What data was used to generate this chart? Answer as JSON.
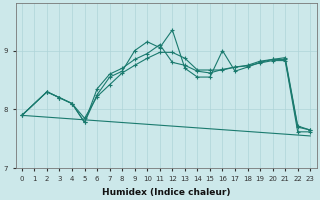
{
  "xlabel": "Humidex (Indice chaleur)",
  "bg_color": "#cce8ea",
  "line_color": "#1a7a6e",
  "grid_color": "#afd4d8",
  "xlim": [
    -0.5,
    23.5
  ],
  "ylim": [
    7.0,
    9.8
  ],
  "yticks": [
    7,
    8,
    9
  ],
  "xticks": [
    0,
    1,
    2,
    3,
    4,
    5,
    6,
    7,
    8,
    9,
    10,
    11,
    12,
    13,
    14,
    15,
    16,
    17,
    18,
    19,
    20,
    21,
    22,
    23
  ],
  "series": [
    {
      "x": [
        0,
        2,
        3,
        4,
        5,
        6,
        7,
        8,
        9,
        10,
        11,
        12,
        13,
        14,
        15,
        16,
        17,
        18,
        19,
        20,
        21,
        22,
        23
      ],
      "y": [
        7.9,
        8.3,
        8.2,
        8.1,
        7.78,
        8.25,
        8.55,
        8.65,
        9.0,
        9.15,
        9.05,
        9.35,
        8.7,
        8.55,
        8.55,
        9.0,
        8.65,
        8.72,
        8.8,
        8.85,
        8.85,
        7.7,
        7.65
      ]
    },
    {
      "x": [
        0,
        2,
        3,
        4,
        5,
        6,
        7,
        8,
        9,
        10,
        11,
        12,
        13,
        14,
        15,
        16,
        17,
        18,
        19,
        20,
        21,
        22,
        23
      ],
      "y": [
        7.9,
        8.3,
        8.2,
        8.1,
        7.78,
        8.35,
        8.6,
        8.7,
        8.85,
        8.95,
        9.1,
        8.8,
        8.75,
        8.65,
        8.62,
        8.68,
        8.72,
        8.75,
        8.82,
        8.85,
        8.88,
        7.72,
        7.65
      ]
    },
    {
      "x": [
        0,
        2,
        3,
        4,
        5,
        6,
        7,
        8,
        9,
        10,
        11,
        12,
        13,
        14,
        15,
        16,
        17,
        18,
        19,
        20,
        21,
        22,
        23
      ],
      "y": [
        7.9,
        8.3,
        8.2,
        8.1,
        7.85,
        8.22,
        8.42,
        8.62,
        8.75,
        8.87,
        8.97,
        8.97,
        8.87,
        8.67,
        8.67,
        8.67,
        8.72,
        8.74,
        8.79,
        8.83,
        8.83,
        7.62,
        7.62
      ]
    },
    {
      "x": [
        0,
        23
      ],
      "y": [
        7.9,
        7.55
      ]
    }
  ]
}
